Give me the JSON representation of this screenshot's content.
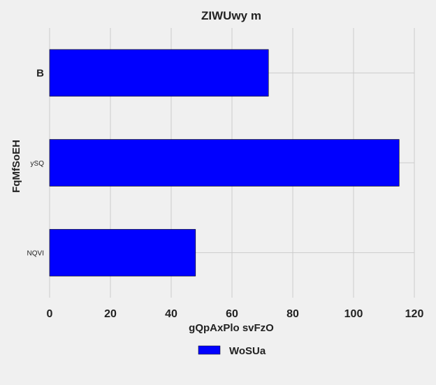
{
  "chart_data": {
    "type": "bar",
    "orientation": "horizontal",
    "title": "ZIWUwy m",
    "xlabel": "gQpAxPlo svFzO",
    "ylabel": "FqMfSoEH",
    "categories": [
      "B",
      "ySQ",
      "NQVI"
    ],
    "series": [
      {
        "name": "WoSUa",
        "values": [
          72,
          115,
          48
        ],
        "color": "#0000ff"
      }
    ],
    "xlim": [
      0,
      120
    ],
    "xticks": [
      0,
      20,
      40,
      60,
      80,
      100,
      120
    ],
    "grid": true,
    "legend_position": "bottom-center",
    "colors": {
      "background": "#f0f0f0",
      "grid": "#cbcbcb",
      "bar": "#0000ff",
      "bar_edge": "#000000",
      "text": "#222222"
    }
  }
}
